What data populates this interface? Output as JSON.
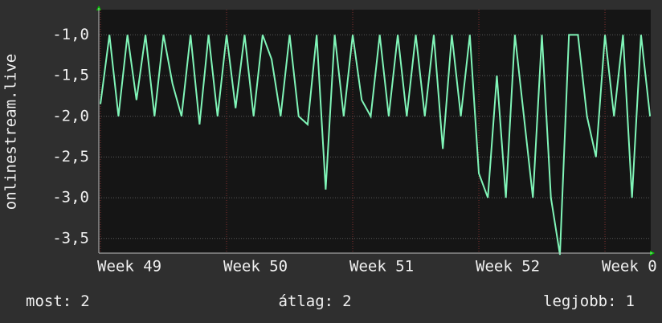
{
  "chart_data": {
    "type": "line",
    "y_label": "onlinestream.live",
    "xlim": [
      -0.09,
      30.54
    ],
    "xticks": [
      {
        "value": 0,
        "label": "Week 49"
      },
      {
        "value": 7,
        "label": "Week 50"
      },
      {
        "value": 14,
        "label": "Week 51"
      },
      {
        "value": 21,
        "label": "Week 52"
      },
      {
        "value": 28,
        "label": "Week 0"
      }
    ],
    "ylim": [
      -3.68,
      -0.69
    ],
    "yticks": [
      {
        "value": -1,
        "label": "-1,0"
      },
      {
        "value": -1.5,
        "label": "-1,5"
      },
      {
        "value": -2,
        "label": "-2,0"
      },
      {
        "value": -2.5,
        "label": "-2,5"
      },
      {
        "value": -3,
        "label": "-3,0"
      },
      {
        "value": -3.5,
        "label": "-3,5"
      }
    ],
    "grid": true,
    "x": [
      0,
      0.5,
      1,
      1.5,
      2,
      2.5,
      3,
      3.5,
      4,
      4.5,
      5,
      5.5,
      6,
      6.5,
      7,
      7.5,
      8,
      8.5,
      9,
      9.5,
      10,
      10.5,
      11,
      11.5,
      12,
      12.5,
      13,
      13.5,
      14,
      14.5,
      15,
      15.5,
      16,
      16.5,
      17,
      17.5,
      18,
      18.5,
      19,
      19.5,
      20,
      20.5,
      21,
      21.5,
      22,
      22.5,
      23,
      23.5,
      24,
      24.5,
      25,
      25.5,
      26,
      26.5,
      27,
      27.5,
      28,
      28.5,
      29,
      29.5,
      30,
      30.5
    ],
    "series": [
      {
        "color": "#80f5b8",
        "values": [
          -1.85,
          -1,
          -2,
          -1,
          -1.8,
          -1,
          -2,
          -1,
          -1.6,
          -2,
          -1,
          -2.1,
          -1,
          -2,
          -1,
          -1.9,
          -1,
          -2,
          -1,
          -1.3,
          -2,
          -1,
          -2,
          -2.1,
          -1,
          -2.9,
          -1,
          -2,
          -1,
          -1.8,
          -2,
          -1,
          -2,
          -1,
          -2,
          -1,
          -2,
          -1,
          -2.4,
          -1,
          -2,
          -1,
          -2.7,
          -3,
          -1.5,
          -3,
          -1,
          -2,
          -3,
          -1,
          -3,
          -3.7,
          -1,
          -1,
          -2,
          -2.5,
          -1,
          -2,
          -1,
          -3,
          -1,
          -2
        ]
      }
    ],
    "stats": [
      {
        "label": "most:",
        "value": 2
      },
      {
        "label": "átlag:",
        "value": 2
      },
      {
        "label": "legjobb:",
        "value": 1
      }
    ]
  }
}
